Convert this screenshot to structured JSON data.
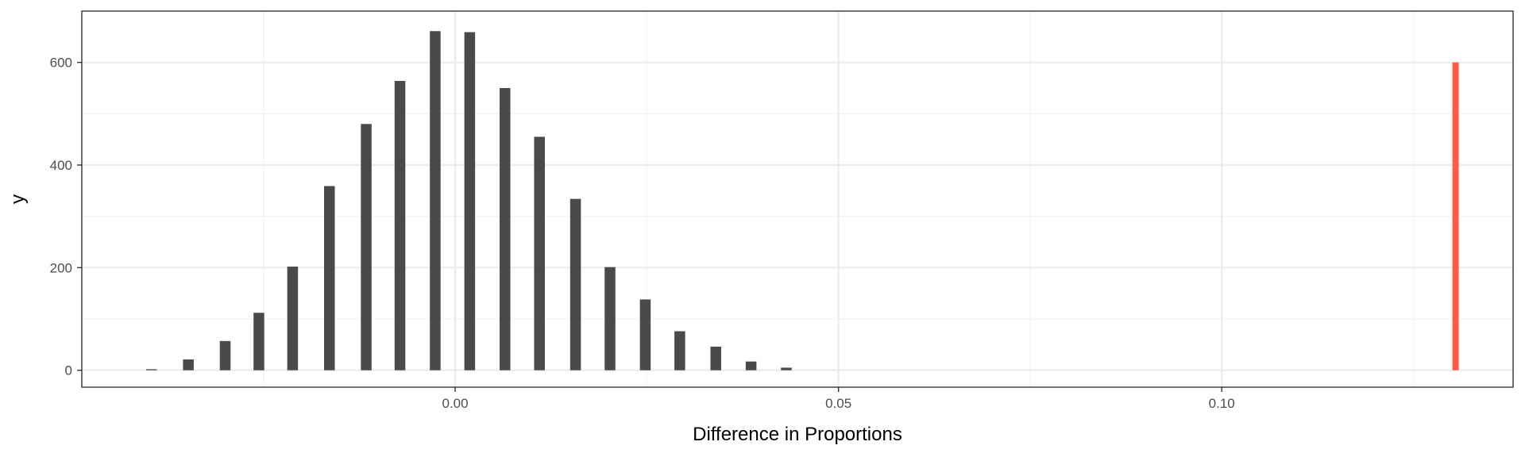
{
  "chart_data": {
    "type": "bar",
    "title": "",
    "xlabel": "Difference in Proportions",
    "ylabel": "y",
    "xlim": [
      -0.0487,
      0.138
    ],
    "ylim": [
      -33,
      700
    ],
    "x_ticks": [
      0.0,
      0.05,
      0.1
    ],
    "x_tick_labels": [
      "0.00",
      "0.05",
      "0.10"
    ],
    "x_minor_ticks": [
      -0.025,
      0.025,
      0.075,
      0.125
    ],
    "y_ticks": [
      0,
      200,
      400,
      600
    ],
    "y_tick_labels": [
      "0",
      "200",
      "400",
      "600"
    ],
    "y_minor_ticks": [
      100,
      300,
      500
    ],
    "grid": true,
    "bar_color": "#4a4a4a",
    "bar_width": 0.0014,
    "x": [
      -0.0396,
      -0.0348,
      -0.03,
      -0.0256,
      -0.0212,
      -0.0164,
      -0.0116,
      -0.0072,
      -0.0026,
      0.0019,
      0.0065,
      0.011,
      0.0157,
      0.0202,
      0.0248,
      0.0293,
      0.034,
      0.0386,
      0.0432
    ],
    "values": [
      2,
      21,
      57,
      112,
      202,
      359,
      480,
      564,
      661,
      659,
      550,
      455,
      334,
      201,
      138,
      76,
      46,
      17,
      5
    ],
    "reference_line": {
      "x": 0.1305,
      "y": 600,
      "color": "#ff5a46"
    },
    "background": "#ffffff"
  }
}
